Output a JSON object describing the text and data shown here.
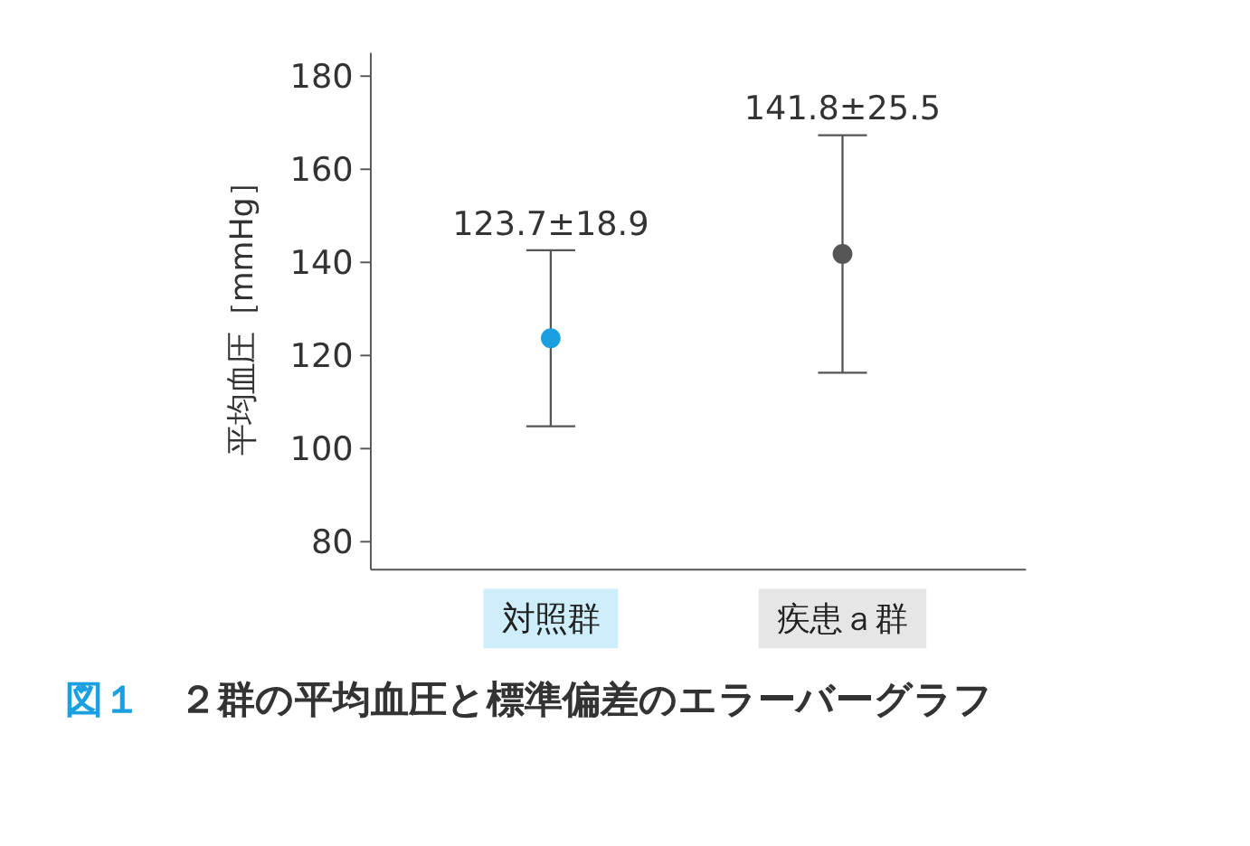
{
  "chart_data": {
    "type": "scatter",
    "title": "図１　２群の平均血圧と標準偏差のエラーバーグラフ",
    "ylabel": "平均血圧［mmHg］",
    "categories": [
      "対照群",
      "疾患ａ群"
    ],
    "values": [
      123.7,
      141.8
    ],
    "errors": [
      18.9,
      25.5
    ],
    "colors": [
      "#1a9fe0",
      "#555555"
    ],
    "annotations": [
      {
        "text": "123.7±18.9",
        "x": "対照群",
        "y": 142.6
      },
      {
        "text": "141.8±25.5",
        "x": "疾患ａ群",
        "y": 167.3
      }
    ],
    "ylim": [
      74,
      185
    ],
    "yticks": [
      80,
      100,
      120,
      140,
      160,
      180
    ],
    "marker": "circle",
    "grid": false
  }
}
